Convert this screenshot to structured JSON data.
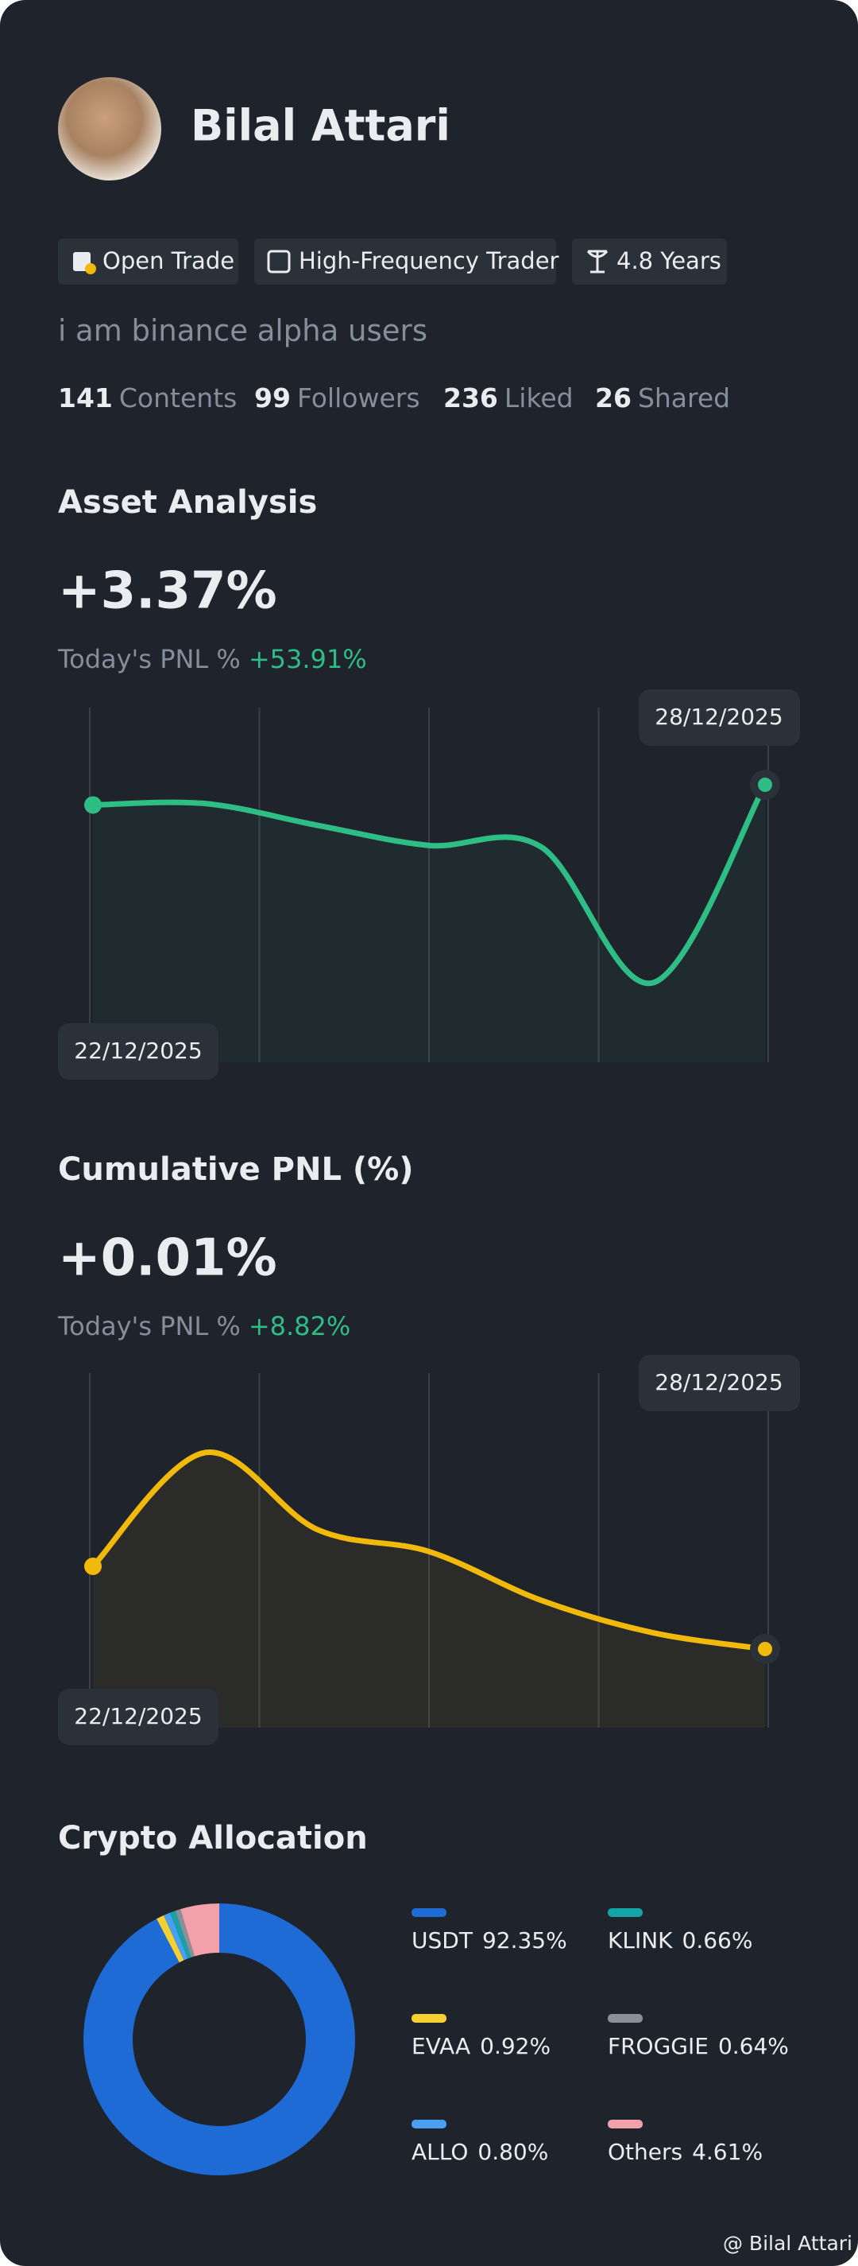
{
  "profile": {
    "name": "Bilal Attari",
    "tags": [
      "Open Trade",
      "High-Frequency Trader",
      "4.8 Years"
    ],
    "bio": "i am binance alpha users",
    "stats": [
      {
        "value": 141,
        "label": "Contents"
      },
      {
        "value": 99,
        "label": "Followers"
      },
      {
        "value": 236,
        "label": "Liked"
      },
      {
        "value": 26,
        "label": "Shared"
      }
    ]
  },
  "chart_data": [
    {
      "type": "line",
      "title": "Asset Analysis",
      "headline": "+3.37%",
      "note_label": "Today's PNL %",
      "note_value": "+53.91%",
      "categories": [
        "22/12/2025",
        null,
        null,
        null,
        null,
        null,
        "28/12/2025"
      ],
      "values": [
        143,
        144,
        129,
        115,
        114,
        20,
        157
      ],
      "color": "#2ebd85"
    },
    {
      "type": "line",
      "title": "Cumulative PNL (%)",
      "headline": "+0.01%",
      "note_label": "Today's PNL %",
      "note_value": "+8.82%",
      "categories": [
        "22/12/2025",
        null,
        null,
        null,
        null,
        null,
        "28/12/2025"
      ],
      "values": [
        115,
        192,
        140,
        125,
        92,
        70,
        59
      ],
      "color": "#f0b90b"
    },
    {
      "type": "pie",
      "title": "Crypto Allocation",
      "categories": [
        "USDT",
        "EVAA",
        "ALLO",
        "KLINK",
        "FROGGIE",
        "Others"
      ],
      "values": [
        92.35,
        0.92,
        0.8,
        0.66,
        0.64,
        4.61
      ],
      "value_labels": [
        "92.35%",
        "0.92%",
        "0.80%",
        "0.66%",
        "0.64%",
        "4.61%"
      ],
      "colors": [
        "#1e6bd6",
        "#f5d033",
        "#4b9ff0",
        "#13a3a8",
        "#8a8f98",
        "#f2a0aa"
      ]
    }
  ],
  "footer": "@ Bilal Attari"
}
